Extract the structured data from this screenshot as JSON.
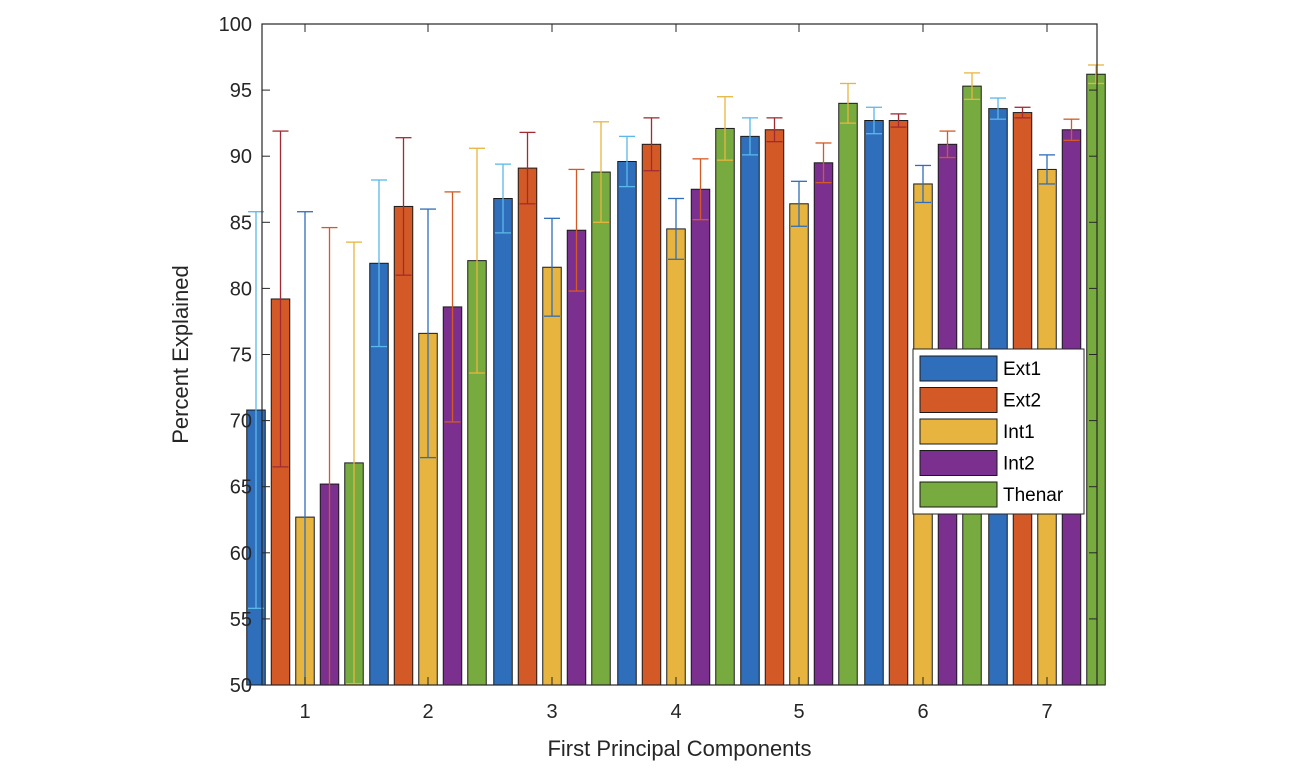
{
  "chart_data": {
    "type": "bar",
    "title": "",
    "xlabel": "First Principal Components",
    "ylabel": "Percent Explained",
    "categories": [
      "1",
      "2",
      "3",
      "4",
      "5",
      "6",
      "7"
    ],
    "ylim": [
      50,
      100
    ],
    "yticks": [
      50,
      55,
      60,
      65,
      70,
      75,
      80,
      85,
      90,
      95,
      100
    ],
    "grid": false,
    "legend_position": "right-middle",
    "series": [
      {
        "name": "Ext1",
        "color": "#2F6EBA",
        "error_color": "#5BB8E8",
        "values": [
          70.8,
          81.9,
          86.8,
          89.6,
          91.5,
          92.7,
          93.6
        ],
        "errors": [
          15.0,
          6.3,
          2.6,
          1.9,
          1.4,
          1.0,
          0.8
        ]
      },
      {
        "name": "Ext2",
        "color": "#D35A27",
        "error_color": "#A22B33",
        "values": [
          79.2,
          86.2,
          89.1,
          90.9,
          92.0,
          92.7,
          93.3
        ],
        "errors": [
          12.7,
          5.2,
          2.7,
          2.0,
          0.9,
          0.5,
          0.4
        ]
      },
      {
        "name": "Int1",
        "color": "#E7B53F",
        "error_color": "#2F6EBA",
        "values": [
          62.7,
          76.6,
          81.6,
          84.5,
          86.4,
          87.9,
          89.0
        ],
        "errors": [
          23.1,
          9.4,
          3.7,
          2.3,
          1.7,
          1.4,
          1.1
        ]
      },
      {
        "name": "Int2",
        "color": "#7B2F8E",
        "error_color": "#D35A27",
        "values": [
          65.2,
          78.6,
          84.4,
          87.5,
          89.5,
          90.9,
          92.0
        ],
        "errors": [
          19.4,
          8.7,
          4.6,
          2.3,
          1.5,
          1.0,
          0.8
        ]
      },
      {
        "name": "Thenar",
        "color": "#78AB3F",
        "error_color": "#E7B53F",
        "values": [
          66.8,
          82.1,
          88.8,
          92.1,
          94.0,
          95.3,
          96.2
        ],
        "errors": [
          16.7,
          8.5,
          3.8,
          2.4,
          1.5,
          1.0,
          0.7
        ]
      }
    ]
  }
}
